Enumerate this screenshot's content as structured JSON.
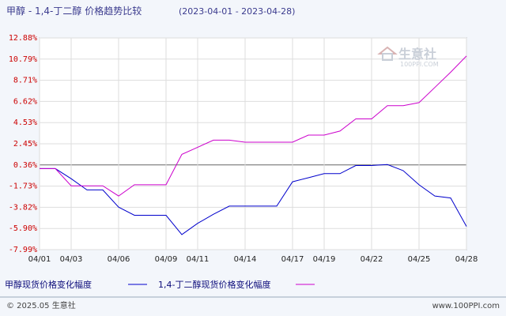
{
  "title": "甲醇 - 1,4-丁二醇 价格趋势比较",
  "date_range": "(2023-04-01 - 2023-04-28)",
  "watermark": {
    "name": "生意社",
    "url": "100PPI.COM"
  },
  "footer": {
    "left": "© 2025.05 生意社",
    "right": "www.100PPI.com"
  },
  "colors": {
    "series_1": "#0000cc",
    "series_2": "#cc00cc",
    "y_tick_text": "#cc0000",
    "zero_line": "#666666"
  },
  "chart_data": {
    "type": "line",
    "x": [
      "04/01",
      "04/02",
      "04/03",
      "04/04",
      "04/05",
      "04/06",
      "04/07",
      "04/08",
      "04/09",
      "04/10",
      "04/11",
      "04/12",
      "04/13",
      "04/14",
      "04/15",
      "04/16",
      "04/17",
      "04/18",
      "04/19",
      "04/20",
      "04/21",
      "04/22",
      "04/23",
      "04/24",
      "04/25",
      "04/26",
      "04/27",
      "04/28"
    ],
    "x_tick_labels": [
      "04/01",
      "04/03",
      "04/06",
      "04/09",
      "04/11",
      "04/14",
      "04/17",
      "04/19",
      "04/22",
      "04/25",
      "04/28"
    ],
    "y_tick_labels": [
      "12.88%",
      "10.79%",
      "8.71%",
      "6.62%",
      "4.53%",
      "2.45%",
      "0.36%",
      "-1.73%",
      "-3.82%",
      "-5.90%",
      "-7.99%"
    ],
    "ylim": [
      -7.99,
      12.88
    ],
    "grid": true,
    "legend_position": "bottom",
    "series": [
      {
        "name": "甲醇现货价格变化幅度",
        "values": [
          0.0,
          0.0,
          -1.0,
          -2.1,
          -2.1,
          -3.8,
          -4.6,
          -4.6,
          -4.6,
          -6.5,
          -5.4,
          -4.5,
          -3.7,
          -3.7,
          -3.7,
          -3.7,
          -1.3,
          -0.9,
          -0.5,
          -0.5,
          0.3,
          0.3,
          0.4,
          -0.2,
          -1.6,
          -2.7,
          -2.9,
          -5.7
        ]
      },
      {
        "name": "1,4-丁二醇现货价格变化幅度",
        "values": [
          0.0,
          0.0,
          -1.7,
          -1.7,
          -1.7,
          -2.7,
          -1.6,
          -1.6,
          -1.6,
          1.4,
          2.1,
          2.8,
          2.8,
          2.6,
          2.6,
          2.6,
          2.6,
          3.3,
          3.3,
          3.7,
          4.9,
          4.9,
          6.2,
          6.2,
          6.5,
          8.0,
          9.5,
          11.1
        ]
      }
    ]
  }
}
